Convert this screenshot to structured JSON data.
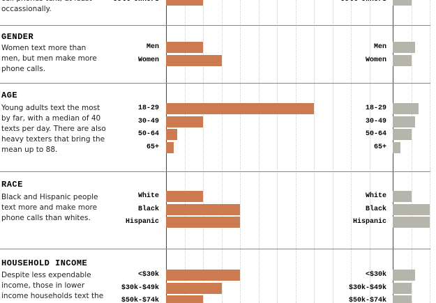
{
  "chart_data": {
    "type": "bar",
    "sections": [
      {
        "description": "cell phones text, at least occassionally.",
        "rows": [
          {
            "label": "Cell Owners",
            "texts": 10,
            "calls": 5
          }
        ]
      },
      {
        "title": "GENDER",
        "description": "Women text more than men, but men make more phone calls.",
        "rows": [
          {
            "label": "Men",
            "texts": 10,
            "calls": 6
          },
          {
            "label": "Women",
            "texts": 15,
            "calls": 5
          }
        ]
      },
      {
        "title": "AGE",
        "description": "Young adults text the most by far, with a median of 40 texts per day. There are also heavy texters that bring the mean up to 88.",
        "rows": [
          {
            "label": "18-29",
            "texts": 40,
            "calls": 7
          },
          {
            "label": "30-49",
            "texts": 10,
            "calls": 6
          },
          {
            "label": "50-64",
            "texts": 3,
            "calls": 5
          },
          {
            "label": "65+",
            "texts": 2,
            "calls": 2
          }
        ]
      },
      {
        "title": "RACE",
        "description": "Black and Hispanic people text more and make more phone calls than whites.",
        "rows": [
          {
            "label": "White",
            "texts": 10,
            "calls": 5
          },
          {
            "label": "Black",
            "texts": 20,
            "calls": 10
          },
          {
            "label": "Hispanic",
            "texts": 20,
            "calls": 10
          }
        ]
      },
      {
        "title": "HOUSEHOLD INCOME",
        "description": "Despite less expendable income, those in lower income households text the",
        "rows": [
          {
            "label": "<$30k",
            "texts": 20,
            "calls": 6
          },
          {
            "label": "$30k-$49k",
            "texts": 15,
            "calls": 5
          },
          {
            "label": "$50k-$74k",
            "texts": 10,
            "calls": 5
          }
        ]
      }
    ],
    "texts_color": "#cc7a50",
    "calls_color": "#b5b5ab",
    "xlim": [
      0,
      60
    ],
    "xticks": [
      5,
      10,
      15,
      20,
      25,
      30,
      35,
      40,
      45,
      50,
      55
    ],
    "x2lim": [
      0,
      12
    ],
    "x2ticks": [
      5,
      10
    ]
  }
}
